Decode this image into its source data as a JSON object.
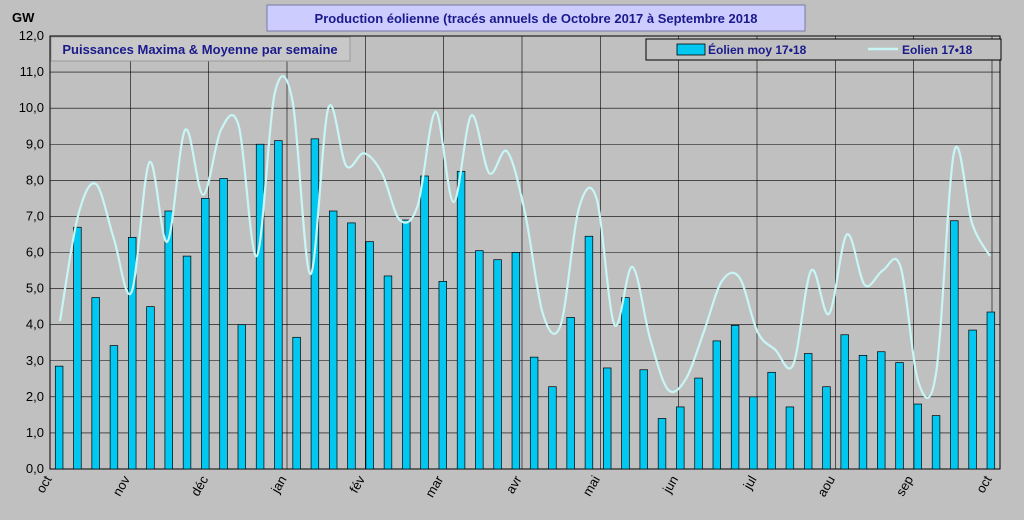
{
  "chart_data": {
    "type": "bar",
    "title": "Production éolienne (tracés annuels de Octobre 2017 à Septembre 2018",
    "subtitle": "Puissances Maxima & Moyenne par semaine",
    "ylabel": "GW",
    "ylim": [
      0,
      12
    ],
    "yticks": [
      "0,0",
      "1,0",
      "2,0",
      "3,0",
      "4,0",
      "5,0",
      "6,0",
      "7,0",
      "8,0",
      "9,0",
      "10,0",
      "11,0",
      "12,0"
    ],
    "month_labels": [
      "oct",
      "nov",
      "déc",
      "jan",
      "fév",
      "mar",
      "avr",
      "mai",
      "jun",
      "jul",
      "aou",
      "sep",
      "oct"
    ],
    "grid": true,
    "legend_position": "top-right",
    "series": [
      {
        "name": "Éolien moy 17•18",
        "type": "bar",
        "color": "#00c8f0",
        "values": [
          2.85,
          6.7,
          4.75,
          3.42,
          6.42,
          4.5,
          7.15,
          5.9,
          7.5,
          8.05,
          4.0,
          9.0,
          9.1,
          3.65,
          9.15,
          7.15,
          6.82,
          6.3,
          5.35,
          6.9,
          8.12,
          5.2,
          8.25,
          6.05,
          5.8,
          6.0,
          3.1,
          2.28,
          4.2,
          6.45,
          2.8,
          4.75,
          2.75,
          1.4,
          1.72,
          2.52,
          3.55,
          3.98,
          2.0,
          2.68,
          1.72,
          3.2,
          2.28,
          3.72,
          3.15,
          3.25,
          2.95,
          1.8,
          1.48,
          6.88,
          3.85,
          4.35
        ]
      },
      {
        "name": "Eolien 17•18",
        "type": "line",
        "color": "#c8f5f5",
        "values": [
          4.1,
          7.0,
          7.9,
          6.4,
          4.9,
          8.5,
          6.3,
          9.4,
          7.6,
          9.4,
          9.5,
          5.9,
          10.4,
          10.2,
          5.4,
          10.0,
          8.4,
          8.75,
          8.2,
          6.9,
          7.3,
          9.9,
          7.4,
          9.8,
          8.2,
          8.8,
          7.1,
          4.3,
          4.0,
          7.2,
          7.5,
          4.0,
          5.6,
          3.6,
          2.2,
          2.5,
          3.8,
          5.2,
          5.3,
          3.8,
          3.3,
          2.9,
          5.5,
          4.3,
          6.5,
          5.1,
          5.5,
          5.6,
          2.4,
          2.7,
          8.8,
          6.8,
          5.9
        ]
      }
    ]
  }
}
